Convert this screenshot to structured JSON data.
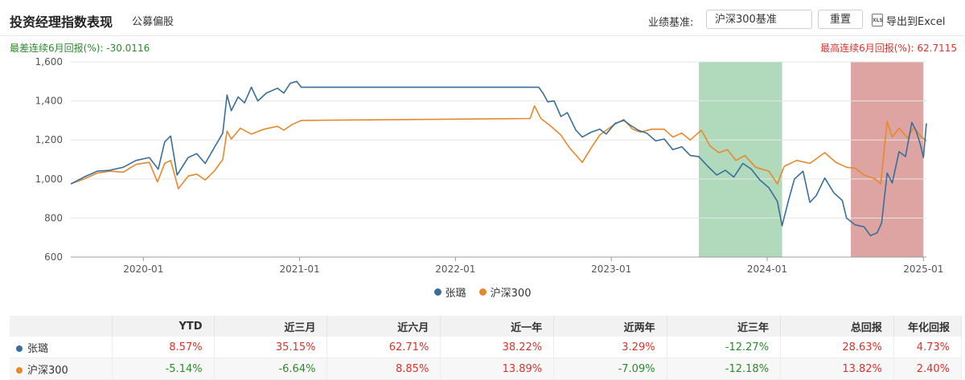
{
  "header": {
    "title": "投资经理指数表现",
    "subtitle": "公募偏股",
    "benchmark_label": "业绩基准:",
    "benchmark_value": "沪深300基准",
    "reset_label": "重置",
    "export_label": "导出到Excel",
    "export_icon": "excel-icon"
  },
  "drawdown": {
    "worst": "最差连续6月回报(%): -30.0116",
    "best": "最高连续6月回报(%): 62.7115"
  },
  "chart_data": {
    "type": "line",
    "ylim": [
      600,
      1600
    ],
    "yticks": [
      600,
      800,
      1000,
      1200,
      1400,
      1600
    ],
    "ytick_labels": [
      "600",
      "800",
      "1,000",
      "1,200",
      "1,400",
      "1,600"
    ],
    "xlim": [
      "2019-07-15",
      "2025-01-08"
    ],
    "xticks": [
      "2020-01",
      "2021-01",
      "2022-01",
      "2023-01",
      "2024-01",
      "2025-01"
    ],
    "grid": true,
    "legend_position": "bottom",
    "bands": [
      {
        "from": "2023-07-25",
        "to": "2024-02-05",
        "color": "#a8d5b5"
      },
      {
        "from": "2024-07-15",
        "to": "2025-01-01",
        "color": "#d99a98"
      }
    ],
    "series": [
      {
        "name": "张璐",
        "color": "#3a6e9a",
        "points": [
          [
            "2019-07-15",
            975
          ],
          [
            "2019-08-15",
            1010
          ],
          [
            "2019-09-15",
            1040
          ],
          [
            "2019-10-15",
            1045
          ],
          [
            "2019-11-15",
            1060
          ],
          [
            "2019-12-15",
            1095
          ],
          [
            "2020-01-15",
            1110
          ],
          [
            "2020-02-05",
            1050
          ],
          [
            "2020-02-20",
            1190
          ],
          [
            "2020-03-05",
            1220
          ],
          [
            "2020-03-20",
            1020
          ],
          [
            "2020-04-15",
            1110
          ],
          [
            "2020-05-05",
            1130
          ],
          [
            "2020-05-25",
            1080
          ],
          [
            "2020-06-15",
            1160
          ],
          [
            "2020-07-05",
            1235
          ],
          [
            "2020-07-15",
            1430
          ],
          [
            "2020-07-25",
            1350
          ],
          [
            "2020-08-10",
            1420
          ],
          [
            "2020-08-25",
            1390
          ],
          [
            "2020-09-10",
            1470
          ],
          [
            "2020-09-25",
            1400
          ],
          [
            "2020-10-15",
            1440
          ],
          [
            "2020-11-10",
            1465
          ],
          [
            "2020-11-25",
            1440
          ],
          [
            "2020-12-10",
            1490
          ],
          [
            "2020-12-25",
            1500
          ],
          [
            "2021-01-05",
            1470
          ],
          [
            "2022-07-15",
            1470
          ],
          [
            "2022-07-25",
            1440
          ],
          [
            "2022-08-05",
            1395
          ],
          [
            "2022-08-20",
            1400
          ],
          [
            "2022-09-05",
            1320
          ],
          [
            "2022-09-20",
            1340
          ],
          [
            "2022-10-10",
            1250
          ],
          [
            "2022-10-25",
            1215
          ],
          [
            "2022-11-15",
            1240
          ],
          [
            "2022-12-05",
            1255
          ],
          [
            "2022-12-20",
            1230
          ],
          [
            "2023-01-10",
            1285
          ],
          [
            "2023-01-30",
            1300
          ],
          [
            "2023-02-15",
            1275
          ],
          [
            "2023-03-05",
            1250
          ],
          [
            "2023-03-25",
            1235
          ],
          [
            "2023-04-15",
            1195
          ],
          [
            "2023-05-05",
            1205
          ],
          [
            "2023-05-25",
            1150
          ],
          [
            "2023-06-15",
            1165
          ],
          [
            "2023-07-05",
            1120
          ],
          [
            "2023-07-25",
            1115
          ],
          [
            "2023-08-15",
            1065
          ],
          [
            "2023-09-05",
            1020
          ],
          [
            "2023-09-25",
            1045
          ],
          [
            "2023-10-15",
            1010
          ],
          [
            "2023-11-05",
            1080
          ],
          [
            "2023-11-25",
            1050
          ],
          [
            "2023-12-15",
            995
          ],
          [
            "2024-01-05",
            955
          ],
          [
            "2024-01-25",
            885
          ],
          [
            "2024-02-05",
            760
          ],
          [
            "2024-02-20",
            890
          ],
          [
            "2024-03-05",
            1000
          ],
          [
            "2024-03-25",
            1040
          ],
          [
            "2024-04-10",
            880
          ],
          [
            "2024-04-25",
            915
          ],
          [
            "2024-05-15",
            1005
          ],
          [
            "2024-06-05",
            930
          ],
          [
            "2024-06-25",
            890
          ],
          [
            "2024-07-05",
            800
          ],
          [
            "2024-07-25",
            765
          ],
          [
            "2024-08-15",
            755
          ],
          [
            "2024-08-30",
            710
          ],
          [
            "2024-09-15",
            725
          ],
          [
            "2024-09-25",
            775
          ],
          [
            "2024-10-08",
            1030
          ],
          [
            "2024-10-20",
            980
          ],
          [
            "2024-11-05",
            1140
          ],
          [
            "2024-11-20",
            1115
          ],
          [
            "2024-12-05",
            1290
          ],
          [
            "2024-12-15",
            1245
          ],
          [
            "2024-12-25",
            1175
          ],
          [
            "2025-01-01",
            1110
          ],
          [
            "2025-01-08",
            1285
          ]
        ]
      },
      {
        "name": "沪深300",
        "color": "#e8882c",
        "points": [
          [
            "2019-07-15",
            975
          ],
          [
            "2019-08-15",
            1000
          ],
          [
            "2019-09-15",
            1030
          ],
          [
            "2019-10-15",
            1040
          ],
          [
            "2019-11-15",
            1035
          ],
          [
            "2019-12-15",
            1075
          ],
          [
            "2020-01-15",
            1085
          ],
          [
            "2020-02-03",
            985
          ],
          [
            "2020-02-20",
            1080
          ],
          [
            "2020-03-05",
            1095
          ],
          [
            "2020-03-23",
            950
          ],
          [
            "2020-04-15",
            1015
          ],
          [
            "2020-05-05",
            1025
          ],
          [
            "2020-05-25",
            995
          ],
          [
            "2020-06-15",
            1040
          ],
          [
            "2020-07-05",
            1100
          ],
          [
            "2020-07-15",
            1245
          ],
          [
            "2020-07-25",
            1205
          ],
          [
            "2020-08-15",
            1260
          ],
          [
            "2020-09-10",
            1230
          ],
          [
            "2020-10-10",
            1255
          ],
          [
            "2020-11-10",
            1270
          ],
          [
            "2020-11-25",
            1250
          ],
          [
            "2020-12-15",
            1280
          ],
          [
            "2021-01-05",
            1300
          ],
          [
            "2022-06-25",
            1310
          ],
          [
            "2022-07-05",
            1375
          ],
          [
            "2022-07-20",
            1310
          ],
          [
            "2022-08-10",
            1275
          ],
          [
            "2022-09-05",
            1225
          ],
          [
            "2022-09-25",
            1160
          ],
          [
            "2022-10-25",
            1085
          ],
          [
            "2022-11-15",
            1160
          ],
          [
            "2022-12-05",
            1225
          ],
          [
            "2023-01-05",
            1275
          ],
          [
            "2023-01-30",
            1305
          ],
          [
            "2023-02-20",
            1255
          ],
          [
            "2023-03-10",
            1240
          ],
          [
            "2023-04-05",
            1255
          ],
          [
            "2023-05-05",
            1255
          ],
          [
            "2023-05-25",
            1215
          ],
          [
            "2023-06-15",
            1235
          ],
          [
            "2023-07-05",
            1200
          ],
          [
            "2023-07-31",
            1250
          ],
          [
            "2023-08-20",
            1170
          ],
          [
            "2023-09-10",
            1135
          ],
          [
            "2023-09-30",
            1150
          ],
          [
            "2023-10-20",
            1095
          ],
          [
            "2023-11-10",
            1120
          ],
          [
            "2023-12-05",
            1060
          ],
          [
            "2024-01-05",
            1040
          ],
          [
            "2024-01-25",
            975
          ],
          [
            "2024-02-10",
            1065
          ],
          [
            "2024-03-10",
            1095
          ],
          [
            "2024-04-10",
            1080
          ],
          [
            "2024-05-15",
            1135
          ],
          [
            "2024-06-10",
            1085
          ],
          [
            "2024-07-05",
            1060
          ],
          [
            "2024-07-25",
            1055
          ],
          [
            "2024-08-15",
            1020
          ],
          [
            "2024-09-10",
            1000
          ],
          [
            "2024-09-23",
            975
          ],
          [
            "2024-10-08",
            1295
          ],
          [
            "2024-10-20",
            1215
          ],
          [
            "2024-11-05",
            1260
          ],
          [
            "2024-11-25",
            1210
          ],
          [
            "2024-12-10",
            1265
          ],
          [
            "2024-12-25",
            1220
          ],
          [
            "2025-01-08",
            1195
          ]
        ]
      }
    ]
  },
  "legend": [
    {
      "name": "张璐",
      "color": "#3a6e9a"
    },
    {
      "name": "沪深300",
      "color": "#e8882c"
    }
  ],
  "table": {
    "headers": [
      "",
      "YTD",
      "近三月",
      "近六月",
      "近一年",
      "近两年",
      "近三年",
      "总回报",
      "年化回报"
    ],
    "rows": [
      {
        "name": "张璐",
        "color": "#3a6e9a",
        "values": [
          "8.57%",
          "35.15%",
          "62.71%",
          "38.22%",
          "3.29%",
          "-12.27%",
          "28.63%",
          "4.73%"
        ]
      },
      {
        "name": "沪深300",
        "color": "#e8882c",
        "values": [
          "-5.14%",
          "-6.64%",
          "8.85%",
          "13.89%",
          "-7.09%",
          "-12.18%",
          "13.82%",
          "2.40%"
        ]
      }
    ]
  }
}
